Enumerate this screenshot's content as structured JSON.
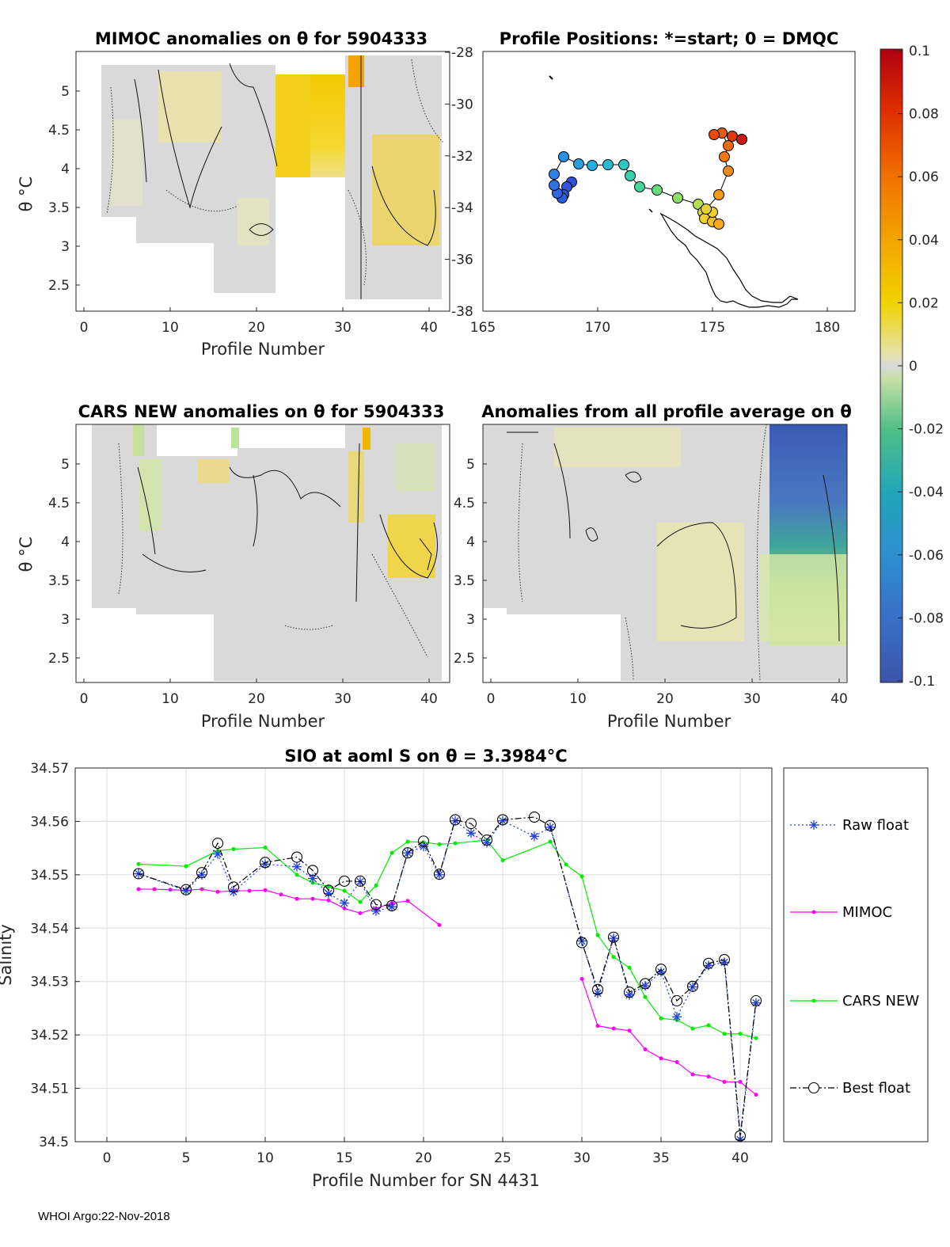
{
  "footer": "WHOI Argo:22-Nov-2018",
  "colors": {
    "raw_float": "#1f3fe0",
    "mimoc": "#ff00ff",
    "cars_new": "#00ee00",
    "best_float": "#000000",
    "grid": "#dcdcdc",
    "anomaly_base": "#d9d9d9"
  },
  "panels": {
    "mimoc": {
      "title": "MIMOC anomalies on θ  for 5904333",
      "xlabel": "Profile Number",
      "ylabel": "θ °C",
      "x_ticks": [
        "0",
        "10",
        "20",
        "30",
        "40"
      ],
      "y_ticks": [
        "2.5",
        "3",
        "3.5",
        "4",
        "4.5",
        "5"
      ]
    },
    "positions": {
      "title": "Profile Positions: *=start; 0 = DMQC",
      "x_ticks": [
        "165",
        "170",
        "175",
        "180"
      ],
      "y_ticks": [
        "-28",
        "-30",
        "-32",
        "-34",
        "-36",
        "-38"
      ]
    },
    "cars": {
      "title": "CARS NEW anomalies on θ for 5904333",
      "xlabel": "Profile Number",
      "ylabel": "θ °C",
      "x_ticks": [
        "0",
        "10",
        "20",
        "30",
        "40"
      ],
      "y_ticks": [
        "2.5",
        "3",
        "3.5",
        "4",
        "4.5",
        "5"
      ]
    },
    "allavg": {
      "title": "Anomalies from all profile average on θ",
      "xlabel": "Profile Number",
      "x_ticks": [
        "0",
        "10",
        "20",
        "30",
        "40"
      ],
      "y_ticks": [
        "2.5",
        "3",
        "3.5",
        "4",
        "4.5",
        "5"
      ]
    },
    "colorbar": {
      "ticks": [
        "0.1",
        "0.08",
        "0.06",
        "0.04",
        "0.02",
        "0",
        "-0.02",
        "-0.04",
        "-0.06",
        "-0.08",
        "-0.1"
      ],
      "range": [
        -0.1,
        0.1
      ]
    }
  },
  "chart_data": [
    {
      "type": "line",
      "title": "SIO at aoml S on θ = 3.3984°C",
      "xlabel": "Profile Number for SN 4431",
      "ylabel": "Salinity",
      "xlim": [
        -2,
        42
      ],
      "ylim": [
        34.5,
        34.57
      ],
      "x_ticks": [
        "0",
        "5",
        "10",
        "15",
        "20",
        "25",
        "30",
        "35",
        "40"
      ],
      "y_ticks": [
        "34.5",
        "34.51",
        "34.52",
        "34.53",
        "34.54",
        "34.55",
        "34.56",
        "34.57"
      ],
      "grid": true,
      "legend_position": "right-outside",
      "series": [
        {
          "name": "Raw float",
          "x": [
            2,
            5,
            6,
            7,
            8,
            10,
            12,
            13,
            14,
            15,
            16,
            17,
            18,
            19,
            20,
            21,
            22,
            23,
            24,
            25,
            27,
            28,
            30,
            31,
            32,
            33,
            34,
            35,
            36,
            37,
            38,
            39,
            40,
            41
          ],
          "values": [
            34.5502,
            34.547,
            34.55,
            34.5539,
            34.5468,
            34.552,
            34.5515,
            34.5493,
            34.5465,
            34.5447,
            34.5487,
            34.5432,
            34.544,
            34.5541,
            34.5553,
            34.55,
            34.5601,
            34.5578,
            34.556,
            34.5601,
            34.5572,
            34.5589,
            34.5376,
            34.5278,
            34.5381,
            34.5275,
            34.5292,
            34.5318,
            34.5234,
            34.529,
            34.533,
            34.5336,
            34.5004,
            34.526
          ]
        },
        {
          "name": "MIMOC",
          "x": [
            2,
            3,
            4,
            5,
            6,
            7,
            8,
            9,
            10,
            11,
            12,
            13,
            14,
            15,
            16,
            17,
            18,
            19,
            21,
            30,
            31,
            32,
            33,
            34,
            35,
            36,
            37,
            38,
            39,
            40,
            41
          ],
          "values": [
            34.5473,
            34.5473,
            34.5472,
            34.5471,
            34.5473,
            34.5468,
            34.547,
            34.547,
            34.5471,
            34.5463,
            34.5455,
            34.5455,
            34.5452,
            34.5437,
            34.5428,
            34.5437,
            34.5447,
            34.5451,
            34.5406,
            34.5305,
            34.5217,
            34.5212,
            34.5208,
            34.5173,
            34.5156,
            34.5149,
            34.5126,
            34.5122,
            34.5112,
            34.5112,
            34.5088
          ]
        },
        {
          "name": "CARS NEW",
          "x": [
            2,
            5,
            7,
            8,
            10,
            12,
            13,
            14,
            15,
            16,
            17,
            18,
            19,
            20,
            21,
            22,
            24,
            25,
            28,
            29,
            30,
            31,
            32,
            33,
            34,
            35,
            36,
            37,
            38,
            39,
            40,
            41
          ],
          "values": [
            34.552,
            34.5516,
            34.5545,
            34.5548,
            34.5551,
            34.55,
            34.5485,
            34.5478,
            34.547,
            34.5449,
            34.548,
            34.5541,
            34.5562,
            34.5561,
            34.5557,
            34.5559,
            34.5565,
            34.5527,
            34.5562,
            34.5519,
            34.5497,
            34.5387,
            34.5346,
            34.5326,
            34.5271,
            34.5231,
            34.5228,
            34.5212,
            34.5218,
            34.5202,
            34.5202,
            34.5194
          ]
        },
        {
          "name": "Best float",
          "x": [
            2,
            5,
            6,
            7,
            8,
            10,
            12,
            13,
            14,
            15,
            16,
            17,
            18,
            19,
            20,
            21,
            22,
            23,
            24,
            25,
            27,
            28,
            30,
            31,
            32,
            33,
            34,
            35,
            36,
            37,
            38,
            39,
            40,
            41
          ],
          "values": [
            34.5502,
            34.5472,
            34.5504,
            34.5559,
            34.5477,
            34.5523,
            34.5533,
            34.5508,
            34.5471,
            34.5488,
            34.5488,
            34.5444,
            34.5442,
            34.5541,
            34.5563,
            34.5501,
            34.5603,
            34.5596,
            34.5565,
            34.5603,
            34.5608,
            34.5592,
            34.5373,
            34.5285,
            34.5383,
            34.528,
            34.5296,
            34.5323,
            34.5264,
            34.5291,
            34.5334,
            34.5341,
            34.5011,
            34.5264
          ]
        }
      ]
    }
  ]
}
